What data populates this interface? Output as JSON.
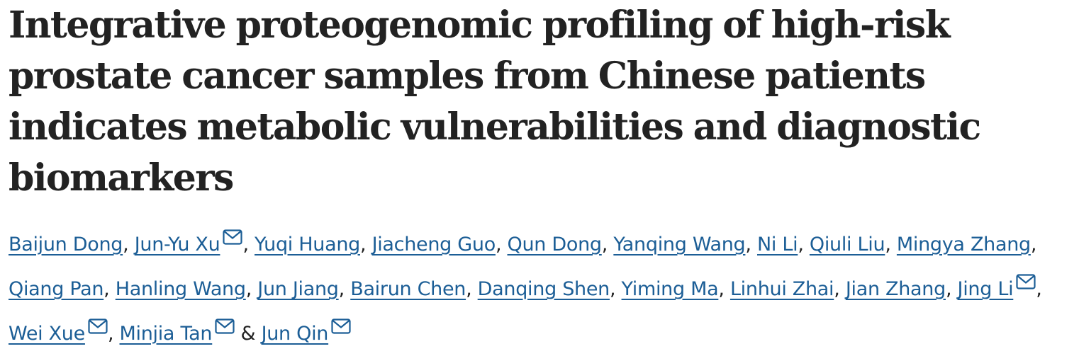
{
  "article": {
    "title": "Integrative proteogenomic profiling of high-risk prostate cancer samples from Chinese patients indicates metabolic vulnerabilities and diagnostic biomarkers",
    "separator": ", ",
    "conjunction": " & ",
    "mail_icon": "envelope-icon",
    "link_color": "#1c5e96",
    "authors": [
      {
        "name": "Baijun Dong",
        "corresponding": false
      },
      {
        "name": "Jun-Yu Xu",
        "corresponding": true
      },
      {
        "name": "Yuqi Huang",
        "corresponding": false
      },
      {
        "name": "Jiacheng Guo",
        "corresponding": false
      },
      {
        "name": "Qun Dong",
        "corresponding": false
      },
      {
        "name": "Yanqing Wang",
        "corresponding": false
      },
      {
        "name": "Ni Li",
        "corresponding": false
      },
      {
        "name": "Qiuli Liu",
        "corresponding": false
      },
      {
        "name": "Mingya Zhang",
        "corresponding": false
      },
      {
        "name": "Qiang Pan",
        "corresponding": false
      },
      {
        "name": "Hanling Wang",
        "corresponding": false
      },
      {
        "name": "Jun Jiang",
        "corresponding": false
      },
      {
        "name": "Bairun Chen",
        "corresponding": false
      },
      {
        "name": "Danqing Shen",
        "corresponding": false
      },
      {
        "name": "Yiming Ma",
        "corresponding": false
      },
      {
        "name": "Linhui Zhai",
        "corresponding": false
      },
      {
        "name": "Jian Zhang",
        "corresponding": false
      },
      {
        "name": "Jing Li",
        "corresponding": true
      },
      {
        "name": "Wei Xue",
        "corresponding": true
      },
      {
        "name": "Minjia Tan",
        "corresponding": true
      },
      {
        "name": "Jun Qin",
        "corresponding": true
      }
    ]
  }
}
